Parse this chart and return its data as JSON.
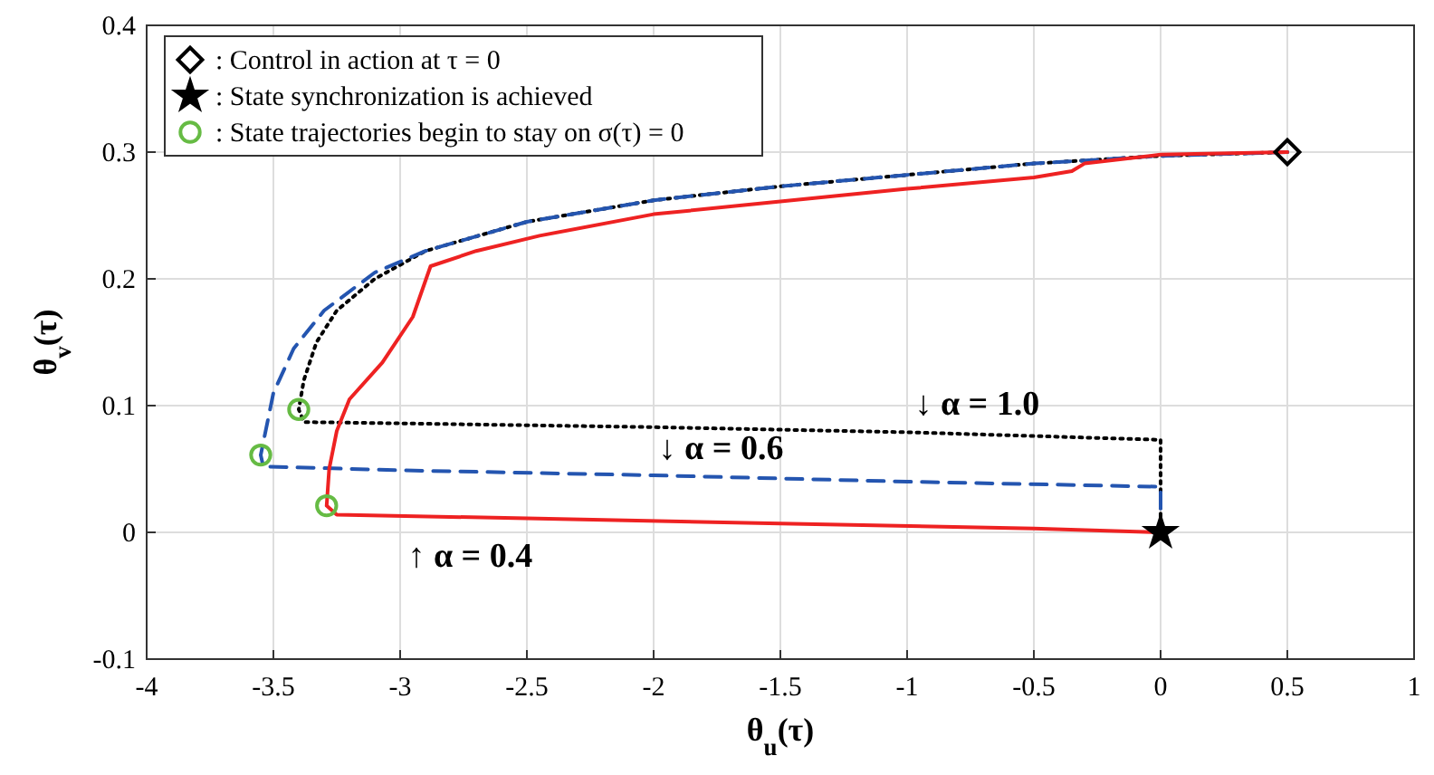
{
  "chart_data": {
    "type": "line",
    "xlabel": "θ$_{u}$(τ)",
    "ylabel": "θ$_{v}$(τ)",
    "xlim": [
      -4,
      1
    ],
    "ylim": [
      -0.1,
      0.4
    ],
    "xticks": [
      -4,
      -3.5,
      -3,
      -2.5,
      -2,
      -1.5,
      -1,
      -0.5,
      0,
      0.5,
      1
    ],
    "yticks": [
      -0.1,
      0,
      0.1,
      0.2,
      0.3,
      0.4
    ],
    "grid": true,
    "legend": "top left",
    "series": [
      {
        "color": "#000000",
        "line_style": "dotted",
        "x": [
          0.5,
          0,
          -0.5,
          -1,
          -1.5,
          -2,
          -2.5,
          -2.9,
          -3.1,
          -3.25,
          -3.33,
          -3.38,
          -3.4,
          -3.38,
          -3,
          -2,
          -1,
          0,
          0
        ],
        "values": [
          0.3,
          0.297,
          0.291,
          0.282,
          0.273,
          0.262,
          0.245,
          0.222,
          0.2,
          0.175,
          0.15,
          0.12,
          0.097,
          0.087,
          0.086,
          0.083,
          0.079,
          0.073,
          0
        ]
      },
      {
        "color": "#2455b0",
        "line_style": "dashed",
        "x": [
          0.5,
          0,
          -0.5,
          -1,
          -1.5,
          -2,
          -2.5,
          -2.9,
          -3.1,
          -3.3,
          -3.42,
          -3.5,
          -3.55,
          -3.54,
          -3,
          -2,
          -1,
          0,
          0
        ],
        "values": [
          0.3,
          0.297,
          0.291,
          0.282,
          0.273,
          0.262,
          0.245,
          0.222,
          0.205,
          0.175,
          0.145,
          0.11,
          0.061,
          0.052,
          0.049,
          0.045,
          0.04,
          0.036,
          0
        ]
      },
      {
        "color": "#ee2222",
        "line_style": "solid",
        "x": [
          0.5,
          0,
          -0.3,
          -0.35,
          -0.5,
          -1,
          -1.5,
          -2,
          -2.45,
          -2.7,
          -2.88,
          -2.95,
          -3.07,
          -3.2,
          -3.25,
          -3.28,
          -3.29,
          -3.25,
          -2.5,
          -1.5,
          -0.5,
          0
        ],
        "values": [
          0.3,
          0.298,
          0.291,
          0.285,
          0.28,
          0.271,
          0.261,
          0.251,
          0.234,
          0.222,
          0.21,
          0.17,
          0.134,
          0.105,
          0.08,
          0.05,
          0.021,
          0.014,
          0.011,
          0.007,
          0.003,
          0
        ]
      },
      {
        "type": "scatter",
        "name": ": Control in action at τ = 0",
        "color": "#000000",
        "marker": "diamond",
        "x": [
          0.5
        ],
        "values": [
          0.3
        ]
      },
      {
        "type": "scatter",
        "name": ": State synchronization is achieved",
        "color": "#000000",
        "marker": "star",
        "x": [
          0
        ],
        "values": [
          0
        ]
      },
      {
        "type": "scatter",
        "name": ": State trajectories begin to stay on σ(τ) = 0",
        "color": "#66bb44",
        "marker": "circle",
        "x": [
          -3.4,
          -3.55,
          -3.29
        ],
        "values": [
          0.097,
          0.061,
          0.021
        ]
      }
    ],
    "annotations": [
      {
        "text": "↓ α = 1.0",
        "x": -0.97,
        "y": 0.087
      },
      {
        "text": "↓ α = 0.6",
        "x": -1.98,
        "y": 0.052
      },
      {
        "text": "↑ α = 0.4",
        "x": -2.97,
        "y": 0.013
      }
    ]
  }
}
